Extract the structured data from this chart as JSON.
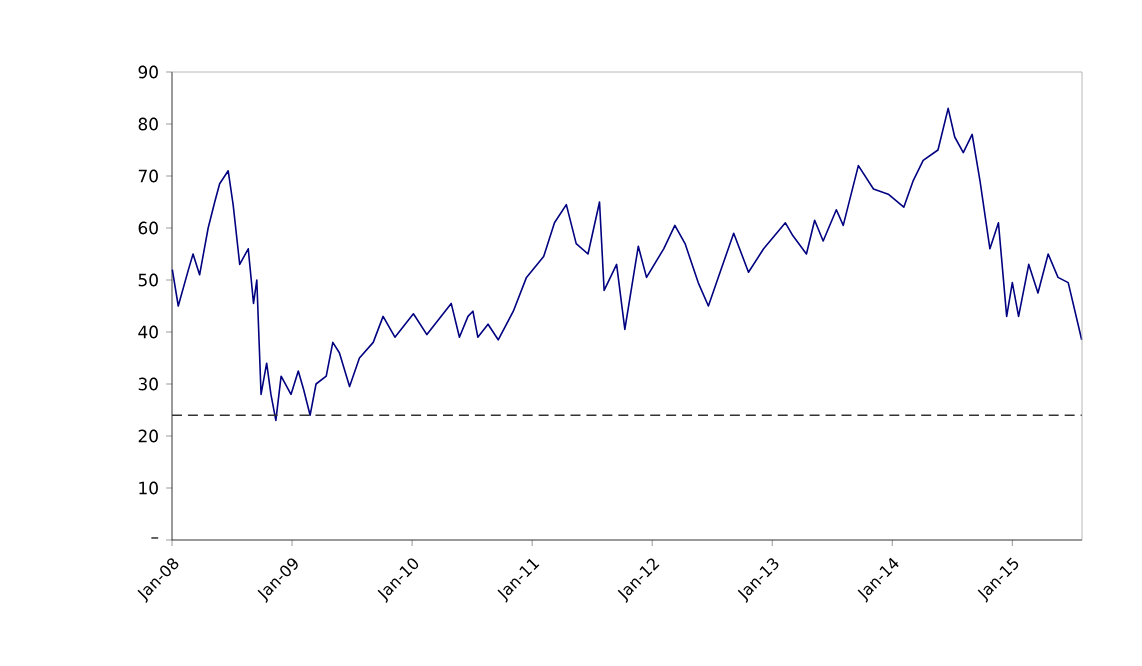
{
  "chart_data": {
    "type": "line",
    "x": [
      "2008-01-02",
      "2008-01-20",
      "2008-02-20",
      "2008-03-05",
      "2008-03-25",
      "2008-04-20",
      "2008-05-10",
      "2008-05-25",
      "2008-06-20",
      "2008-07-05",
      "2008-07-25",
      "2008-08-20",
      "2008-09-05",
      "2008-09-15",
      "2008-09-28",
      "2008-10-15",
      "2008-10-28",
      "2008-11-12",
      "2008-11-28",
      "2008-12-28",
      "2009-01-20",
      "2009-02-05",
      "2009-02-25",
      "2009-03-15",
      "2009-04-15",
      "2009-05-05",
      "2009-05-25",
      "2009-06-25",
      "2009-07-25",
      "2009-09-05",
      "2009-10-05",
      "2009-11-10",
      "2010-01-05",
      "2010-02-15",
      "2010-04-30",
      "2010-05-25",
      "2010-06-20",
      "2010-07-05",
      "2010-07-20",
      "2010-08-20",
      "2010-09-20",
      "2010-11-05",
      "2010-12-15",
      "2011-02-05",
      "2011-03-10",
      "2011-04-15",
      "2011-05-15",
      "2011-06-20",
      "2011-07-25",
      "2011-08-08",
      "2011-09-15",
      "2011-10-10",
      "2011-11-20",
      "2011-12-15",
      "2012-02-05",
      "2012-03-10",
      "2012-04-10",
      "2012-05-20",
      "2012-06-20",
      "2012-07-20",
      "2012-09-05",
      "2012-10-20",
      "2012-12-05",
      "2013-02-10",
      "2013-03-05",
      "2013-04-15",
      "2013-05-10",
      "2013-06-05",
      "2013-07-15",
      "2013-08-05",
      "2013-09-20",
      "2013-11-05",
      "2013-12-20",
      "2014-02-05",
      "2014-03-05",
      "2014-04-05",
      "2014-05-20",
      "2014-06-20",
      "2014-07-10",
      "2014-08-05",
      "2014-09-01",
      "2014-09-25",
      "2014-10-25",
      "2014-11-20",
      "2014-12-15",
      "2015-01-01",
      "2015-01-20",
      "2015-02-20",
      "2015-03-20",
      "2015-04-20",
      "2015-05-20",
      "2015-06-20",
      "2015-07-31"
    ],
    "series": [
      {
        "color": "#000080",
        "values": [
          52,
          45,
          52,
          55,
          51,
          60,
          65,
          68.5,
          71,
          64.5,
          53,
          56,
          45.5,
          50,
          28,
          34,
          28,
          23,
          31.5,
          28,
          32.5,
          29,
          24,
          30,
          31.5,
          38,
          36,
          29.5,
          35,
          38,
          43,
          39,
          43.5,
          39.5,
          45.5,
          39,
          43,
          44,
          39,
          41.5,
          38.5,
          44,
          50.5,
          54.5,
          61,
          64.5,
          57,
          55,
          65,
          48,
          53,
          40.5,
          56.5,
          50.5,
          56,
          60.5,
          57,
          49.5,
          45,
          50.5,
          59,
          51.5,
          56,
          61,
          58.5,
          55,
          61.5,
          57.5,
          63.5,
          60.5,
          72,
          67.5,
          66.5,
          64,
          69,
          73,
          75,
          83,
          77.5,
          74.5,
          78,
          69,
          56,
          61,
          43,
          49.5,
          43,
          53,
          47.5,
          55,
          50.5,
          49.5,
          38.5
        ]
      }
    ],
    "xlim": [
      "2008-01-01",
      "2015-08-01"
    ],
    "xticks": [
      {
        "value": "2008-01-01",
        "label": "Jan-08"
      },
      {
        "value": "2009-01-01",
        "label": "Jan-09"
      },
      {
        "value": "2010-01-01",
        "label": "Jan-10"
      },
      {
        "value": "2011-01-01",
        "label": "Jan-11"
      },
      {
        "value": "2012-01-01",
        "label": "Jan-12"
      },
      {
        "value": "2013-01-01",
        "label": "Jan-13"
      },
      {
        "value": "2014-01-01",
        "label": "Jan-14"
      },
      {
        "value": "2015-01-01",
        "label": "Jan-15"
      }
    ],
    "ylim": [
      0,
      90
    ],
    "yticks": [
      {
        "value": 0,
        "label": "–"
      },
      10,
      20,
      30,
      40,
      50,
      60,
      70,
      80,
      90
    ],
    "ref_lines": [
      {
        "axis": "y",
        "value": 24,
        "color": "#333333",
        "line_style": "dashed"
      }
    ],
    "marker": "none",
    "line_style": "solid"
  }
}
